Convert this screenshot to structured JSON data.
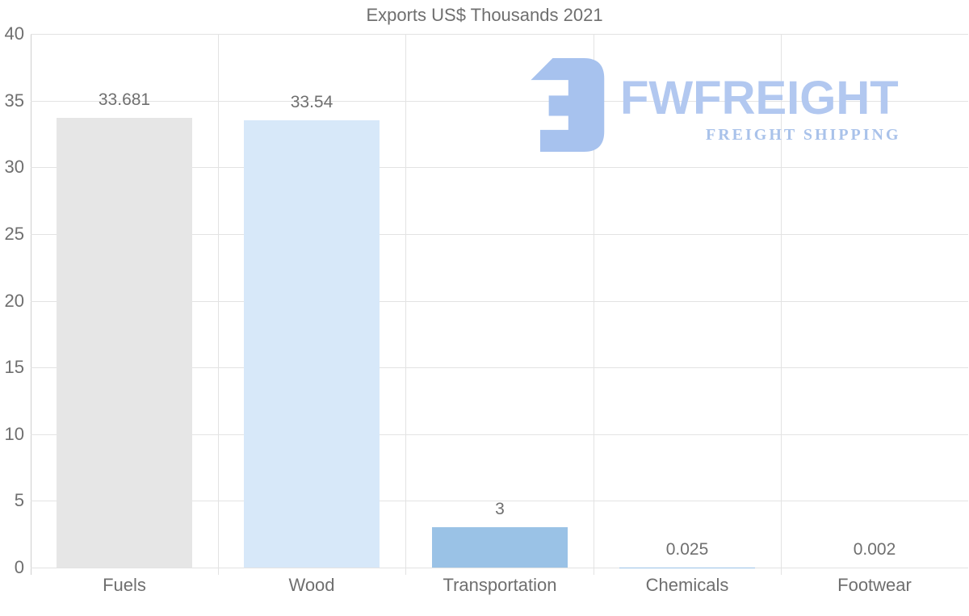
{
  "title": "Exports US$ Thousands 2021",
  "logo": {
    "name": "FWFREIGHT",
    "tagline": "FREIGHT SHIPPING",
    "icon": "fwfreight-mark-icon",
    "icon_color": "#a7c2ee",
    "name_color": "#b2c8f0",
    "tagline_color": "#a9c2ea"
  },
  "chart_data": {
    "type": "bar",
    "title": "Exports US$ Thousands 2021",
    "categories": [
      "Fuels",
      "Wood",
      "Transportation",
      "Chemicals",
      "Footwear"
    ],
    "values": [
      33.681,
      33.54,
      3,
      0.025,
      0.002
    ],
    "value_labels": [
      "33.681",
      "33.54",
      "3",
      "0.025",
      "0.002"
    ],
    "bar_colors": [
      "#e6e6e6",
      "#d7e8f9",
      "#9ac2e6",
      "#9ac2e6",
      "#9ac2e6"
    ],
    "xlabel": "",
    "ylabel": "",
    "ylim": [
      0,
      40
    ],
    "yticks": [
      0,
      5,
      10,
      15,
      20,
      25,
      30,
      35,
      40
    ],
    "grid": true,
    "legend": "none",
    "text_color": "#6f6f6f",
    "grid_color": "#e3e3e3",
    "axis_color": "#cfcfcf"
  }
}
